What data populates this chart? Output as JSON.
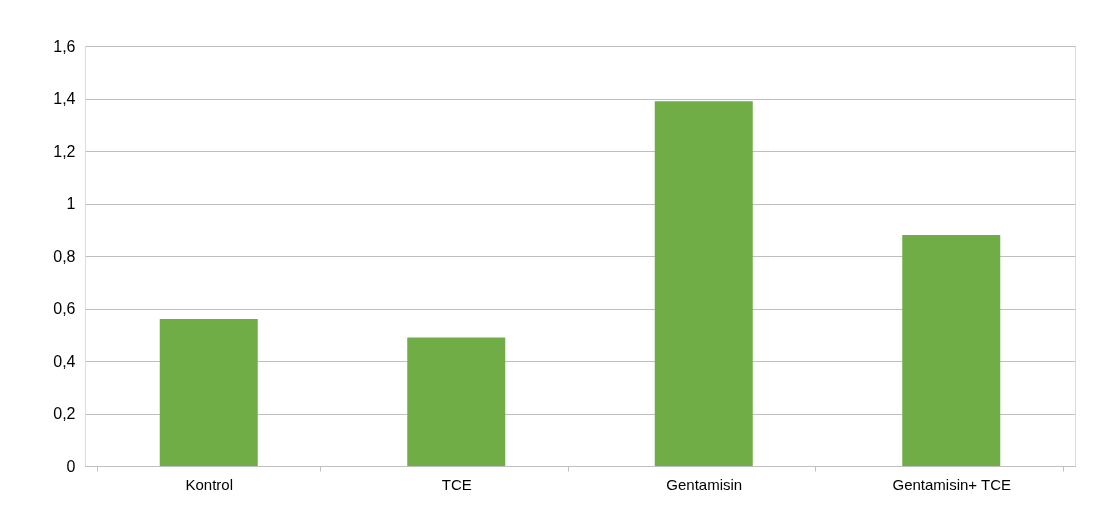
{
  "chart_data": {
    "type": "bar",
    "categories": [
      "Kontrol",
      "TCE",
      "Gentamisin",
      "Gentamisin+ TCE"
    ],
    "values": [
      0.56,
      0.49,
      1.39,
      0.88
    ],
    "color": "#70ad47",
    "ylim": [
      0,
      1.6
    ],
    "yticks": [
      0,
      {
        "value": 0.2,
        "label": "0,2"
      },
      {
        "value": 0.4,
        "label": "0,4"
      },
      {
        "value": 0.6,
        "label": "0,6"
      },
      {
        "value": 0.8,
        "label": "0,8"
      },
      1,
      {
        "value": 1.2,
        "label": "1,2"
      },
      {
        "value": 1.4,
        "label": "1,4"
      },
      {
        "value": 1.6,
        "label": "1,6"
      }
    ],
    "grid": "y"
  }
}
